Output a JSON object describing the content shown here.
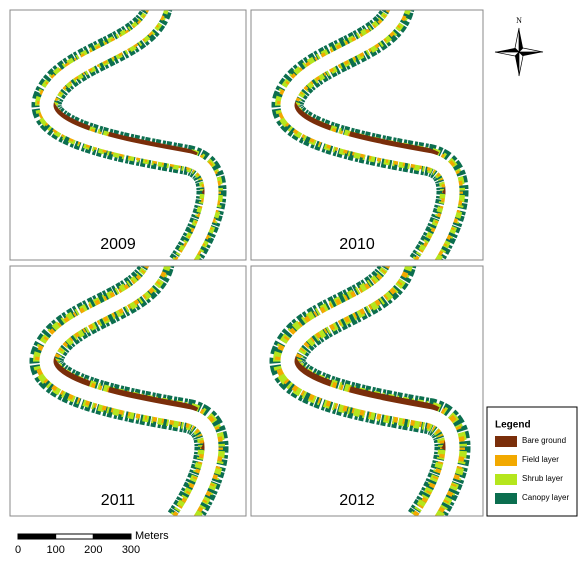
{
  "panels": [
    {
      "label": "2009"
    },
    {
      "label": "2010"
    },
    {
      "label": "2011"
    },
    {
      "label": "2012"
    }
  ],
  "legend": {
    "title": "Legend",
    "items": [
      {
        "label": "Bare ground",
        "color": "#7a2e0a"
      },
      {
        "label": "Field layer",
        "color": "#f2a900"
      },
      {
        "label": "Shrub layer",
        "color": "#b5e61d"
      },
      {
        "label": "Canopy layer",
        "color": "#0b6e4f"
      }
    ]
  },
  "north": "N",
  "scale_bar": {
    "unit": "Meters",
    "ticks": [
      0,
      100,
      200,
      300
    ]
  }
}
